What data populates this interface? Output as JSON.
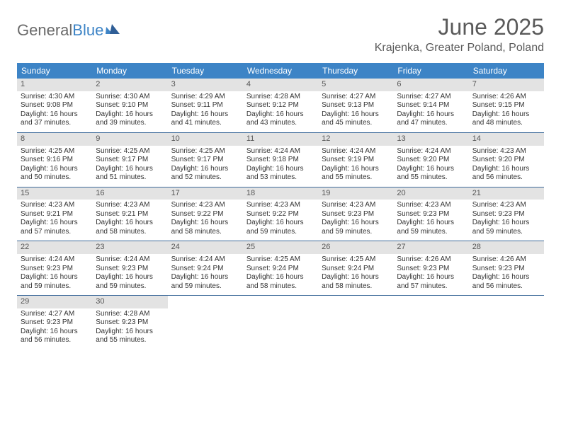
{
  "brand": {
    "part1": "General",
    "part2": "Blue"
  },
  "title": "June 2025",
  "location": "Krajenka, Greater Poland, Poland",
  "colors": {
    "header_bg": "#3d84c6",
    "header_text": "#ffffff",
    "daynum_bg": "#e3e3e3",
    "daynum_text": "#555555",
    "body_text": "#333333",
    "rule": "#3d6a9a",
    "title_text": "#5a5a5a"
  },
  "dayNames": [
    "Sunday",
    "Monday",
    "Tuesday",
    "Wednesday",
    "Thursday",
    "Friday",
    "Saturday"
  ],
  "labels": {
    "sunrise": "Sunrise:",
    "sunset": "Sunset:",
    "daylight": "Daylight:"
  },
  "days": [
    {
      "n": 1,
      "sunrise": "4:30 AM",
      "sunset": "9:08 PM",
      "daylight": "16 hours and 37 minutes."
    },
    {
      "n": 2,
      "sunrise": "4:30 AM",
      "sunset": "9:10 PM",
      "daylight": "16 hours and 39 minutes."
    },
    {
      "n": 3,
      "sunrise": "4:29 AM",
      "sunset": "9:11 PM",
      "daylight": "16 hours and 41 minutes."
    },
    {
      "n": 4,
      "sunrise": "4:28 AM",
      "sunset": "9:12 PM",
      "daylight": "16 hours and 43 minutes."
    },
    {
      "n": 5,
      "sunrise": "4:27 AM",
      "sunset": "9:13 PM",
      "daylight": "16 hours and 45 minutes."
    },
    {
      "n": 6,
      "sunrise": "4:27 AM",
      "sunset": "9:14 PM",
      "daylight": "16 hours and 47 minutes."
    },
    {
      "n": 7,
      "sunrise": "4:26 AM",
      "sunset": "9:15 PM",
      "daylight": "16 hours and 48 minutes."
    },
    {
      "n": 8,
      "sunrise": "4:25 AM",
      "sunset": "9:16 PM",
      "daylight": "16 hours and 50 minutes."
    },
    {
      "n": 9,
      "sunrise": "4:25 AM",
      "sunset": "9:17 PM",
      "daylight": "16 hours and 51 minutes."
    },
    {
      "n": 10,
      "sunrise": "4:25 AM",
      "sunset": "9:17 PM",
      "daylight": "16 hours and 52 minutes."
    },
    {
      "n": 11,
      "sunrise": "4:24 AM",
      "sunset": "9:18 PM",
      "daylight": "16 hours and 53 minutes."
    },
    {
      "n": 12,
      "sunrise": "4:24 AM",
      "sunset": "9:19 PM",
      "daylight": "16 hours and 55 minutes."
    },
    {
      "n": 13,
      "sunrise": "4:24 AM",
      "sunset": "9:20 PM",
      "daylight": "16 hours and 55 minutes."
    },
    {
      "n": 14,
      "sunrise": "4:23 AM",
      "sunset": "9:20 PM",
      "daylight": "16 hours and 56 minutes."
    },
    {
      "n": 15,
      "sunrise": "4:23 AM",
      "sunset": "9:21 PM",
      "daylight": "16 hours and 57 minutes."
    },
    {
      "n": 16,
      "sunrise": "4:23 AM",
      "sunset": "9:21 PM",
      "daylight": "16 hours and 58 minutes."
    },
    {
      "n": 17,
      "sunrise": "4:23 AM",
      "sunset": "9:22 PM",
      "daylight": "16 hours and 58 minutes."
    },
    {
      "n": 18,
      "sunrise": "4:23 AM",
      "sunset": "9:22 PM",
      "daylight": "16 hours and 59 minutes."
    },
    {
      "n": 19,
      "sunrise": "4:23 AM",
      "sunset": "9:23 PM",
      "daylight": "16 hours and 59 minutes."
    },
    {
      "n": 20,
      "sunrise": "4:23 AM",
      "sunset": "9:23 PM",
      "daylight": "16 hours and 59 minutes."
    },
    {
      "n": 21,
      "sunrise": "4:23 AM",
      "sunset": "9:23 PM",
      "daylight": "16 hours and 59 minutes."
    },
    {
      "n": 22,
      "sunrise": "4:24 AM",
      "sunset": "9:23 PM",
      "daylight": "16 hours and 59 minutes."
    },
    {
      "n": 23,
      "sunrise": "4:24 AM",
      "sunset": "9:23 PM",
      "daylight": "16 hours and 59 minutes."
    },
    {
      "n": 24,
      "sunrise": "4:24 AM",
      "sunset": "9:24 PM",
      "daylight": "16 hours and 59 minutes."
    },
    {
      "n": 25,
      "sunrise": "4:25 AM",
      "sunset": "9:24 PM",
      "daylight": "16 hours and 58 minutes."
    },
    {
      "n": 26,
      "sunrise": "4:25 AM",
      "sunset": "9:24 PM",
      "daylight": "16 hours and 58 minutes."
    },
    {
      "n": 27,
      "sunrise": "4:26 AM",
      "sunset": "9:23 PM",
      "daylight": "16 hours and 57 minutes."
    },
    {
      "n": 28,
      "sunrise": "4:26 AM",
      "sunset": "9:23 PM",
      "daylight": "16 hours and 56 minutes."
    },
    {
      "n": 29,
      "sunrise": "4:27 AM",
      "sunset": "9:23 PM",
      "daylight": "16 hours and 56 minutes."
    },
    {
      "n": 30,
      "sunrise": "4:28 AM",
      "sunset": "9:23 PM",
      "daylight": "16 hours and 55 minutes."
    }
  ],
  "grid": {
    "startOffset": 0,
    "rows": 5,
    "cols": 7
  }
}
